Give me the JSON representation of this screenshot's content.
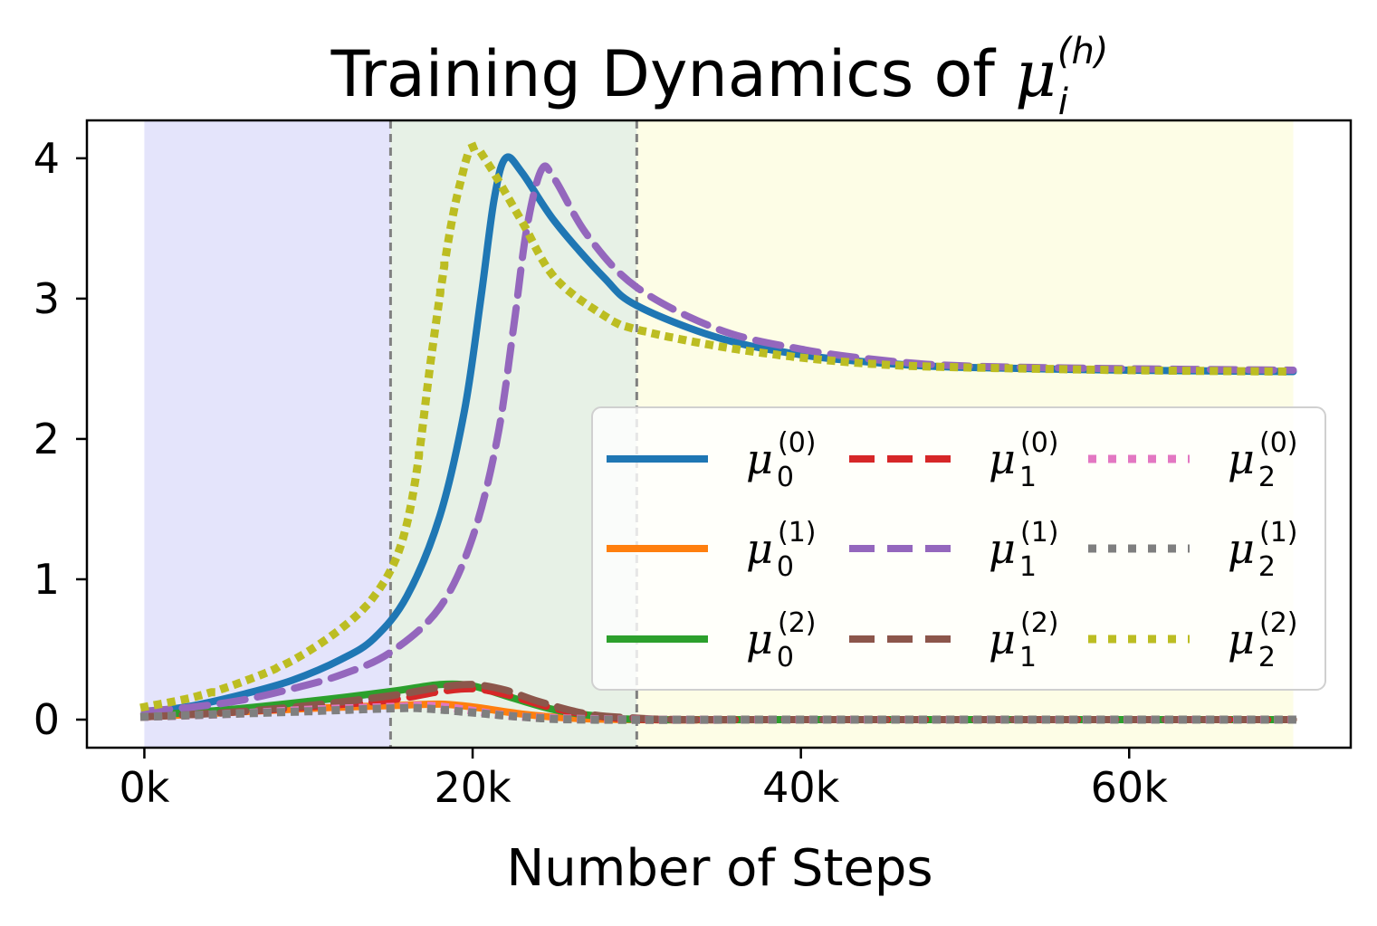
{
  "chart_data": {
    "type": "line",
    "title": {
      "prefix": "Training Dynamics of ",
      "symbol": "μ",
      "subscript": "i",
      "superscript": "(h)"
    },
    "xlabel": "Number of Steps",
    "ylabel": "",
    "xlim": [
      -3500,
      73500
    ],
    "ylim": [
      -0.2,
      4.27
    ],
    "xticks": [
      {
        "value": 0,
        "label": "0k"
      },
      {
        "value": 20000,
        "label": "20k"
      },
      {
        "value": 40000,
        "label": "40k"
      },
      {
        "value": 60000,
        "label": "60k"
      }
    ],
    "yticks": [
      {
        "value": 0,
        "label": "0"
      },
      {
        "value": 1,
        "label": "1"
      },
      {
        "value": 2,
        "label": "2"
      },
      {
        "value": 3,
        "label": "3"
      },
      {
        "value": 4,
        "label": "4"
      }
    ],
    "grid": false,
    "legend_position": "lower-right",
    "phases": [
      {
        "start": 0,
        "end": 15000,
        "color": "#e4e4fb"
      },
      {
        "start": 15000,
        "end": 30000,
        "color": "#e7f1e6"
      },
      {
        "start": 30000,
        "end": 70000,
        "color": "#fdfde6"
      }
    ],
    "phase_boundaries": [
      15000,
      30000
    ],
    "series": [
      {
        "name_symbol": "μ",
        "name_sub": "0",
        "name_sup": "(0)",
        "color": "#1f77b4",
        "style": "solid",
        "points": [
          [
            0,
            0.05
          ],
          [
            3000,
            0.1
          ],
          [
            6000,
            0.18
          ],
          [
            9000,
            0.28
          ],
          [
            12000,
            0.43
          ],
          [
            14000,
            0.58
          ],
          [
            16000,
            0.88
          ],
          [
            18000,
            1.45
          ],
          [
            19500,
            2.2
          ],
          [
            20500,
            3.0
          ],
          [
            21300,
            3.7
          ],
          [
            22000,
            4.0
          ],
          [
            23000,
            3.9
          ],
          [
            25000,
            3.55
          ],
          [
            28000,
            3.15
          ],
          [
            30000,
            2.95
          ],
          [
            35000,
            2.72
          ],
          [
            40000,
            2.6
          ],
          [
            45000,
            2.54
          ],
          [
            50000,
            2.51
          ],
          [
            60000,
            2.49
          ],
          [
            70000,
            2.48
          ]
        ]
      },
      {
        "name_symbol": "μ",
        "name_sub": "0",
        "name_sup": "(1)",
        "color": "#ff7f0e",
        "style": "solid",
        "points": [
          [
            0,
            0.02
          ],
          [
            5000,
            0.05
          ],
          [
            10000,
            0.08
          ],
          [
            15000,
            0.1
          ],
          [
            18000,
            0.11
          ],
          [
            20000,
            0.09
          ],
          [
            23000,
            0.04
          ],
          [
            26000,
            0.01
          ],
          [
            30000,
            0.0
          ],
          [
            40000,
            0.0
          ],
          [
            70000,
            0.0
          ]
        ]
      },
      {
        "name_symbol": "μ",
        "name_sub": "0",
        "name_sup": "(2)",
        "color": "#2ca02c",
        "style": "solid",
        "points": [
          [
            0,
            0.03
          ],
          [
            5000,
            0.07
          ],
          [
            10000,
            0.13
          ],
          [
            15000,
            0.2
          ],
          [
            18000,
            0.25
          ],
          [
            20000,
            0.24
          ],
          [
            22000,
            0.17
          ],
          [
            25000,
            0.07
          ],
          [
            28000,
            0.02
          ],
          [
            31000,
            0.0
          ],
          [
            40000,
            0.0
          ],
          [
            70000,
            0.0
          ]
        ]
      },
      {
        "name_symbol": "μ",
        "name_sub": "1",
        "name_sup": "(0)",
        "color": "#d62728",
        "style": "dashed",
        "points": [
          [
            0,
            0.02
          ],
          [
            5000,
            0.05
          ],
          [
            10000,
            0.09
          ],
          [
            15000,
            0.14
          ],
          [
            18000,
            0.2
          ],
          [
            20000,
            0.22
          ],
          [
            22000,
            0.18
          ],
          [
            25000,
            0.08
          ],
          [
            28000,
            0.02
          ],
          [
            31000,
            0.0
          ],
          [
            40000,
            0.0
          ],
          [
            70000,
            0.0
          ]
        ]
      },
      {
        "name_symbol": "μ",
        "name_sub": "1",
        "name_sup": "(1)",
        "color": "#9467bd",
        "style": "dashed",
        "points": [
          [
            0,
            0.06
          ],
          [
            3000,
            0.09
          ],
          [
            6000,
            0.14
          ],
          [
            9000,
            0.22
          ],
          [
            12000,
            0.32
          ],
          [
            15000,
            0.48
          ],
          [
            18000,
            0.8
          ],
          [
            20000,
            1.3
          ],
          [
            21500,
            2.0
          ],
          [
            22500,
            2.8
          ],
          [
            23300,
            3.5
          ],
          [
            24200,
            3.92
          ],
          [
            25000,
            3.85
          ],
          [
            27000,
            3.45
          ],
          [
            30000,
            3.08
          ],
          [
            35000,
            2.78
          ],
          [
            40000,
            2.64
          ],
          [
            45000,
            2.56
          ],
          [
            50000,
            2.52
          ],
          [
            60000,
            2.5
          ],
          [
            70000,
            2.49
          ]
        ]
      },
      {
        "name_symbol": "μ",
        "name_sub": "1",
        "name_sup": "(2)",
        "color": "#8c564b",
        "style": "dashed",
        "points": [
          [
            0,
            0.02
          ],
          [
            5000,
            0.05
          ],
          [
            10000,
            0.1
          ],
          [
            15000,
            0.17
          ],
          [
            18000,
            0.23
          ],
          [
            20000,
            0.25
          ],
          [
            22000,
            0.21
          ],
          [
            24000,
            0.13
          ],
          [
            27000,
            0.04
          ],
          [
            30000,
            0.01
          ],
          [
            33000,
            0.0
          ],
          [
            40000,
            0.0
          ],
          [
            70000,
            0.0
          ]
        ]
      },
      {
        "name_symbol": "μ",
        "name_sub": "2",
        "name_sup": "(0)",
        "color": "#e377c2",
        "style": "dotted",
        "points": [
          [
            0,
            0.02
          ],
          [
            5000,
            0.04
          ],
          [
            10000,
            0.07
          ],
          [
            15000,
            0.09
          ],
          [
            17000,
            0.1
          ],
          [
            19000,
            0.08
          ],
          [
            22000,
            0.03
          ],
          [
            25000,
            0.01
          ],
          [
            30000,
            0.0
          ],
          [
            40000,
            0.0
          ],
          [
            70000,
            0.0
          ]
        ]
      },
      {
        "name_symbol": "μ",
        "name_sub": "2",
        "name_sup": "(1)",
        "color": "#7f7f7f",
        "style": "dotted",
        "points": [
          [
            0,
            0.02
          ],
          [
            5000,
            0.04
          ],
          [
            10000,
            0.06
          ],
          [
            15000,
            0.08
          ],
          [
            17000,
            0.08
          ],
          [
            20000,
            0.05
          ],
          [
            23000,
            0.02
          ],
          [
            27000,
            0.0
          ],
          [
            40000,
            0.0
          ],
          [
            70000,
            0.0
          ]
        ]
      },
      {
        "name_symbol": "μ",
        "name_sub": "2",
        "name_sup": "(2)",
        "color": "#bcbd22",
        "style": "dotted",
        "points": [
          [
            0,
            0.09
          ],
          [
            3000,
            0.16
          ],
          [
            6000,
            0.27
          ],
          [
            9000,
            0.42
          ],
          [
            12000,
            0.65
          ],
          [
            14000,
            0.88
          ],
          [
            15500,
            1.2
          ],
          [
            16500,
            1.7
          ],
          [
            17500,
            2.6
          ],
          [
            18500,
            3.4
          ],
          [
            19300,
            3.85
          ],
          [
            20000,
            4.08
          ],
          [
            21000,
            3.95
          ],
          [
            23000,
            3.55
          ],
          [
            25000,
            3.15
          ],
          [
            28000,
            2.88
          ],
          [
            30000,
            2.78
          ],
          [
            35000,
            2.66
          ],
          [
            40000,
            2.58
          ],
          [
            45000,
            2.53
          ],
          [
            50000,
            2.51
          ],
          [
            60000,
            2.49
          ],
          [
            70000,
            2.48
          ]
        ]
      }
    ]
  }
}
